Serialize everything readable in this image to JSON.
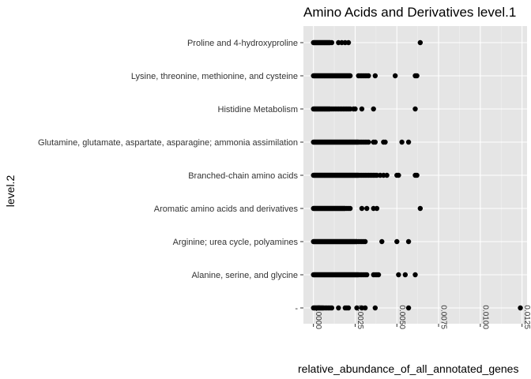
{
  "chart_data": {
    "type": "scatter",
    "title": "Amino Acids and Derivatives level.1",
    "xlabel": "relative_abundance_of_all_annotated_genes",
    "ylabel": "level.2",
    "xlim": [
      -0.0006,
      0.0128
    ],
    "xticks": [
      0.0,
      0.0025,
      0.005,
      0.0075,
      0.01,
      0.0125
    ],
    "xtick_labels": [
      "0.0000",
      "0.0025",
      "0.0050",
      "0.0075",
      "0.0100",
      "0.0125"
    ],
    "grid": true,
    "categories": [
      "Proline and 4-hydroxyproline",
      "Lysine, threonine, methionine, and cysteine",
      "Histidine Metabolism",
      "Glutamine, glutamate, aspartate, asparagine; ammonia assimilation",
      "Branched-chain amino acids",
      "Aromatic amino acids and derivatives",
      "Arginine; urea cycle, polyamines",
      "Alanine, serine, and glycine",
      "-"
    ],
    "series": [
      {
        "category": "Proline and 4-hydroxyproline",
        "values": [
          0.0,
          5e-05,
          0.0001,
          0.00015,
          0.0002,
          0.00025,
          0.0003,
          0.00035,
          0.0004,
          0.00045,
          0.0005,
          0.00055,
          0.0006,
          0.00065,
          0.0007,
          0.00075,
          0.0008,
          0.00085,
          0.0009,
          0.00095,
          0.001,
          0.0011,
          0.0015,
          0.0017,
          0.0019,
          0.0021,
          0.0064
        ]
      },
      {
        "category": "Lysine, threonine, methionine, and cysteine",
        "values": [
          0.0,
          5e-05,
          0.0001,
          0.00015,
          0.0002,
          0.00025,
          0.0003,
          0.00035,
          0.0004,
          0.00045,
          0.0005,
          0.00055,
          0.0006,
          0.00065,
          0.0007,
          0.00075,
          0.0008,
          0.00085,
          0.0009,
          0.00095,
          0.001,
          0.00105,
          0.0011,
          0.00115,
          0.0012,
          0.00125,
          0.0013,
          0.00135,
          0.0014,
          0.00145,
          0.0015,
          0.00155,
          0.0016,
          0.00165,
          0.0017,
          0.00175,
          0.0018,
          0.00185,
          0.0019,
          0.00195,
          0.002,
          0.00205,
          0.0021,
          0.00215,
          0.0022,
          0.0027,
          0.0028,
          0.0029,
          0.003,
          0.0031,
          0.0032,
          0.0033,
          0.0037,
          0.0049,
          0.0061,
          0.0062
        ]
      },
      {
        "category": "Histidine Metabolism",
        "values": [
          0.0,
          5e-05,
          0.0001,
          0.00015,
          0.0002,
          0.00025,
          0.0003,
          0.00035,
          0.0004,
          0.00045,
          0.0005,
          0.00055,
          0.0006,
          0.00065,
          0.0007,
          0.00075,
          0.0008,
          0.00085,
          0.0009,
          0.00095,
          0.001,
          0.0011,
          0.0012,
          0.0013,
          0.0014,
          0.0015,
          0.0016,
          0.0017,
          0.0018,
          0.0019,
          0.002,
          0.0021,
          0.0022,
          0.0024,
          0.0025,
          0.0029,
          0.0036,
          0.0061
        ]
      },
      {
        "category": "Glutamine, glutamate, aspartate, asparagine; ammonia assimilation",
        "values": [
          0.0,
          5e-05,
          0.0001,
          0.00015,
          0.0002,
          0.00025,
          0.0003,
          0.00035,
          0.0004,
          0.00045,
          0.0005,
          0.00055,
          0.0006,
          0.00065,
          0.0007,
          0.00075,
          0.0008,
          0.00085,
          0.0009,
          0.00095,
          0.001,
          0.00105,
          0.0011,
          0.00115,
          0.0012,
          0.00125,
          0.0013,
          0.00135,
          0.0014,
          0.00145,
          0.0015,
          0.00155,
          0.0016,
          0.00165,
          0.0017,
          0.00175,
          0.0018,
          0.00185,
          0.0019,
          0.00195,
          0.002,
          0.00205,
          0.0021,
          0.00215,
          0.0022,
          0.00225,
          0.0023,
          0.00235,
          0.0024,
          0.00245,
          0.0025,
          0.00255,
          0.0026,
          0.00265,
          0.0027,
          0.0028,
          0.0029,
          0.003,
          0.0031,
          0.0032,
          0.0033,
          0.0036,
          0.0037,
          0.0042,
          0.0043,
          0.0053,
          0.0057
        ]
      },
      {
        "category": "Branched-chain amino acids",
        "values": [
          0.0,
          5e-05,
          0.0001,
          0.00015,
          0.0002,
          0.00025,
          0.0003,
          0.00035,
          0.0004,
          0.00045,
          0.0005,
          0.00055,
          0.0006,
          0.00065,
          0.0007,
          0.00075,
          0.0008,
          0.00085,
          0.0009,
          0.00095,
          0.001,
          0.00105,
          0.0011,
          0.00115,
          0.0012,
          0.00125,
          0.0013,
          0.00135,
          0.0014,
          0.00145,
          0.0015,
          0.00155,
          0.0016,
          0.00165,
          0.0017,
          0.00175,
          0.0018,
          0.00185,
          0.0019,
          0.00195,
          0.002,
          0.00205,
          0.0021,
          0.00215,
          0.0022,
          0.00225,
          0.0023,
          0.00235,
          0.0024,
          0.00245,
          0.0025,
          0.00255,
          0.0026,
          0.00265,
          0.0027,
          0.0028,
          0.0029,
          0.003,
          0.0031,
          0.0032,
          0.0033,
          0.0034,
          0.0035,
          0.0036,
          0.0037,
          0.0038,
          0.004,
          0.0042,
          0.0044,
          0.005,
          0.0051,
          0.0061,
          0.0062
        ]
      },
      {
        "category": "Aromatic amino acids and derivatives",
        "values": [
          0.0,
          5e-05,
          0.0001,
          0.00015,
          0.0002,
          0.00025,
          0.0003,
          0.00035,
          0.0004,
          0.00045,
          0.0005,
          0.00055,
          0.0006,
          0.00065,
          0.0007,
          0.00075,
          0.0008,
          0.00085,
          0.0009,
          0.00095,
          0.001,
          0.00105,
          0.0011,
          0.00115,
          0.0012,
          0.00125,
          0.0013,
          0.00135,
          0.0014,
          0.00145,
          0.0015,
          0.00155,
          0.0016,
          0.00165,
          0.0017,
          0.00175,
          0.0018,
          0.00185,
          0.0019,
          0.002,
          0.0021,
          0.0022,
          0.0029,
          0.0032,
          0.0036,
          0.0038,
          0.0064
        ]
      },
      {
        "category": "Arginine; urea cycle, polyamines",
        "values": [
          0.0,
          5e-05,
          0.0001,
          0.00015,
          0.0002,
          0.00025,
          0.0003,
          0.00035,
          0.0004,
          0.00045,
          0.0005,
          0.00055,
          0.0006,
          0.00065,
          0.0007,
          0.00075,
          0.0008,
          0.00085,
          0.0009,
          0.00095,
          0.001,
          0.00105,
          0.0011,
          0.00115,
          0.0012,
          0.00125,
          0.0013,
          0.00135,
          0.0014,
          0.00145,
          0.0015,
          0.00155,
          0.0016,
          0.00165,
          0.0017,
          0.00175,
          0.0018,
          0.00185,
          0.0019,
          0.00195,
          0.002,
          0.00205,
          0.0021,
          0.00215,
          0.0022,
          0.00225,
          0.0023,
          0.00235,
          0.0024,
          0.00245,
          0.0025,
          0.00255,
          0.0026,
          0.0027,
          0.0028,
          0.0029,
          0.003,
          0.0031,
          0.0041,
          0.005,
          0.0057
        ]
      },
      {
        "category": "Alanine, serine, and glycine",
        "values": [
          0.0,
          5e-05,
          0.0001,
          0.00015,
          0.0002,
          0.00025,
          0.0003,
          0.00035,
          0.0004,
          0.00045,
          0.0005,
          0.00055,
          0.0006,
          0.00065,
          0.0007,
          0.00075,
          0.0008,
          0.00085,
          0.0009,
          0.00095,
          0.001,
          0.00105,
          0.0011,
          0.00115,
          0.0012,
          0.00125,
          0.0013,
          0.00135,
          0.0014,
          0.00145,
          0.0015,
          0.00155,
          0.0016,
          0.00165,
          0.0017,
          0.00175,
          0.0018,
          0.00185,
          0.0019,
          0.00195,
          0.002,
          0.00205,
          0.0021,
          0.00215,
          0.0022,
          0.00225,
          0.0023,
          0.00235,
          0.0024,
          0.00245,
          0.0025,
          0.00255,
          0.0026,
          0.00265,
          0.0027,
          0.0028,
          0.0029,
          0.003,
          0.0031,
          0.0032,
          0.0036,
          0.0037,
          0.0038,
          0.0039,
          0.0051,
          0.0055,
          0.0061
        ]
      },
      {
        "category": "-",
        "values": [
          0.0,
          5e-05,
          0.0001,
          0.00015,
          0.0002,
          0.00025,
          0.0003,
          0.00035,
          0.0004,
          0.00045,
          0.0005,
          0.00055,
          0.0006,
          0.0007,
          0.0008,
          0.0009,
          0.001,
          0.0011,
          0.0015,
          0.0019,
          0.002,
          0.0021,
          0.0026,
          0.0029,
          0.0031,
          0.0037,
          0.0057,
          0.0124
        ]
      }
    ]
  }
}
